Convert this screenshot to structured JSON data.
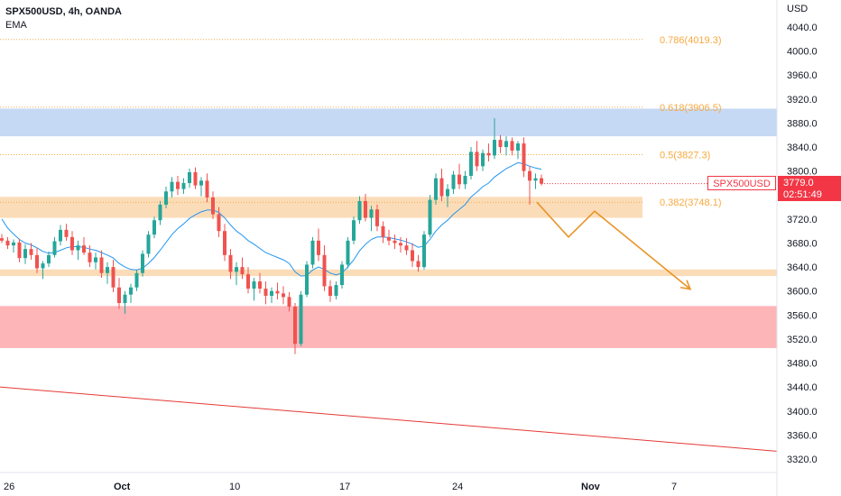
{
  "header": {
    "symbol_line": "SPX500USD, 4h, OANDA",
    "indicator": "EMA"
  },
  "axis": {
    "currency": "USD",
    "y_ticks": [
      "4040.0",
      "4000.0",
      "3960.0",
      "3920.0",
      "3880.0",
      "3840.0",
      "3800.0",
      "3760.0",
      "3720.0",
      "3680.0",
      "3640.0",
      "3600.0",
      "3560.0",
      "3520.0",
      "3480.0",
      "3440.0",
      "3400.0",
      "3360.0",
      "3320.0"
    ],
    "x_ticks": [
      "26",
      "Oct",
      "10",
      "17",
      "24",
      "Nov",
      "7"
    ]
  },
  "price_label": {
    "symbol": "SPX500USD",
    "price": "3779.0",
    "countdown": "02:51:49"
  },
  "colors": {
    "bull": "#26a69a",
    "bear": "#ef5350",
    "ema": "#2196f3",
    "fib": "#f7a940",
    "zone_blue": "#c5d9f5",
    "zone_orange": "#fbdcb8",
    "zone_red": "#fdb5b8",
    "trend": "#e53935",
    "projection": "#e8952a",
    "last_price": "#f23645"
  },
  "chart_data": {
    "type": "candlestick",
    "title": "SPX500USD, 4h, OANDA",
    "ylabel": "USD",
    "ylim": [
      3300,
      4070
    ],
    "x_tick_labels": [
      "26",
      "Oct",
      "10",
      "17",
      "24",
      "Nov",
      "7"
    ],
    "fib_levels": [
      {
        "label": "0.786(4019.3)",
        "value": 4019.3
      },
      {
        "label": "0.618(3906.5)",
        "value": 3906.5
      },
      {
        "label": "0.5(3827.3)",
        "value": 3827.3
      },
      {
        "label": "0.382(3748.1)",
        "value": 3748.1
      }
    ],
    "zones": [
      {
        "name": "resistance",
        "color": "blue",
        "from": 3858,
        "to": 3904
      },
      {
        "name": "support-1",
        "color": "orange",
        "from": 3722,
        "to": 3757
      },
      {
        "name": "support-2",
        "color": "orange",
        "from": 3625,
        "to": 3636
      },
      {
        "name": "demand",
        "color": "red",
        "from": 3505,
        "to": 3575
      }
    ],
    "trendline": {
      "from_value": 3440,
      "to_value": 3333
    },
    "projection_path": [
      3748,
      3690,
      3733,
      3603
    ],
    "last_price": 3779.0,
    "ohlc_approx": [
      [
        3688,
        3695,
        3680,
        3684
      ],
      [
        3684,
        3690,
        3670,
        3676
      ],
      [
        3676,
        3686,
        3664,
        3681
      ],
      [
        3681,
        3687,
        3648,
        3655
      ],
      [
        3655,
        3678,
        3645,
        3670
      ],
      [
        3670,
        3680,
        3652,
        3660
      ],
      [
        3660,
        3672,
        3630,
        3638
      ],
      [
        3638,
        3650,
        3620,
        3646
      ],
      [
        3646,
        3666,
        3640,
        3660
      ],
      [
        3660,
        3690,
        3656,
        3683
      ],
      [
        3683,
        3710,
        3676,
        3702
      ],
      [
        3702,
        3712,
        3684,
        3690
      ],
      [
        3690,
        3700,
        3660,
        3668
      ],
      [
        3668,
        3684,
        3652,
        3676
      ],
      [
        3676,
        3690,
        3660,
        3664
      ],
      [
        3664,
        3676,
        3640,
        3648
      ],
      [
        3648,
        3664,
        3636,
        3656
      ],
      [
        3656,
        3668,
        3622,
        3630
      ],
      [
        3630,
        3648,
        3612,
        3640
      ],
      [
        3640,
        3652,
        3598,
        3606
      ],
      [
        3606,
        3622,
        3570,
        3580
      ],
      [
        3580,
        3600,
        3562,
        3594
      ],
      [
        3594,
        3612,
        3580,
        3606
      ],
      [
        3606,
        3636,
        3600,
        3630
      ],
      [
        3630,
        3668,
        3624,
        3662
      ],
      [
        3662,
        3700,
        3656,
        3694
      ],
      [
        3694,
        3724,
        3688,
        3718
      ],
      [
        3718,
        3750,
        3710,
        3744
      ],
      [
        3744,
        3774,
        3738,
        3766
      ],
      [
        3766,
        3790,
        3756,
        3782
      ],
      [
        3782,
        3792,
        3760,
        3770
      ],
      [
        3770,
        3788,
        3762,
        3780
      ],
      [
        3780,
        3804,
        3772,
        3798
      ],
      [
        3798,
        3806,
        3770,
        3776
      ],
      [
        3776,
        3790,
        3758,
        3784
      ],
      [
        3784,
        3796,
        3748,
        3756
      ],
      [
        3756,
        3766,
        3720,
        3728
      ],
      [
        3728,
        3740,
        3690,
        3700
      ],
      [
        3700,
        3712,
        3650,
        3660
      ],
      [
        3660,
        3670,
        3620,
        3632
      ],
      [
        3632,
        3648,
        3610,
        3640
      ],
      [
        3640,
        3656,
        3620,
        3628
      ],
      [
        3628,
        3640,
        3596,
        3604
      ],
      [
        3604,
        3622,
        3584,
        3616
      ],
      [
        3616,
        3630,
        3596,
        3604
      ],
      [
        3604,
        3616,
        3578,
        3592
      ],
      [
        3592,
        3606,
        3580,
        3600
      ],
      [
        3600,
        3614,
        3586,
        3596
      ],
      [
        3596,
        3608,
        3578,
        3590
      ],
      [
        3590,
        3598,
        3566,
        3574
      ],
      [
        3574,
        3580,
        3495,
        3512
      ],
      [
        3512,
        3600,
        3508,
        3594
      ],
      [
        3594,
        3650,
        3590,
        3644
      ],
      [
        3644,
        3690,
        3638,
        3684
      ],
      [
        3684,
        3704,
        3650,
        3660
      ],
      [
        3660,
        3676,
        3600,
        3608
      ],
      [
        3608,
        3618,
        3582,
        3592
      ],
      [
        3592,
        3616,
        3586,
        3610
      ],
      [
        3610,
        3650,
        3604,
        3644
      ],
      [
        3644,
        3690,
        3638,
        3684
      ],
      [
        3684,
        3724,
        3678,
        3718
      ],
      [
        3718,
        3758,
        3712,
        3750
      ],
      [
        3750,
        3762,
        3716,
        3722
      ],
      [
        3722,
        3742,
        3700,
        3736
      ],
      [
        3736,
        3744,
        3700,
        3708
      ],
      [
        3708,
        3716,
        3680,
        3690
      ],
      [
        3690,
        3702,
        3676,
        3684
      ],
      [
        3684,
        3694,
        3670,
        3680
      ],
      [
        3680,
        3690,
        3664,
        3676
      ],
      [
        3676,
        3688,
        3660,
        3668
      ],
      [
        3668,
        3680,
        3640,
        3650
      ],
      [
        3650,
        3660,
        3632,
        3640
      ],
      [
        3640,
        3700,
        3636,
        3694
      ],
      [
        3694,
        3760,
        3690,
        3752
      ],
      [
        3752,
        3796,
        3744,
        3788
      ],
      [
        3788,
        3804,
        3750,
        3758
      ],
      [
        3758,
        3778,
        3740,
        3770
      ],
      [
        3770,
        3800,
        3762,
        3794
      ],
      [
        3794,
        3812,
        3770,
        3778
      ],
      [
        3778,
        3800,
        3770,
        3792
      ],
      [
        3792,
        3840,
        3786,
        3832
      ],
      [
        3832,
        3850,
        3800,
        3808
      ],
      [
        3808,
        3836,
        3800,
        3830
      ],
      [
        3830,
        3846,
        3816,
        3826
      ],
      [
        3826,
        3888,
        3820,
        3852
      ],
      [
        3852,
        3860,
        3830,
        3840
      ],
      [
        3840,
        3858,
        3826,
        3850
      ],
      [
        3850,
        3856,
        3826,
        3834
      ],
      [
        3834,
        3850,
        3820,
        3846
      ],
      [
        3846,
        3856,
        3790,
        3800
      ],
      [
        3800,
        3808,
        3744,
        3784
      ],
      [
        3784,
        3796,
        3770,
        3788
      ],
      [
        3788,
        3794,
        3776,
        3779
      ]
    ],
    "ema_approx": [
      3720,
      3705,
      3695,
      3686,
      3680,
      3677,
      3672,
      3666,
      3663,
      3664,
      3668,
      3672,
      3674,
      3674,
      3673,
      3670,
      3668,
      3664,
      3660,
      3655,
      3646,
      3640,
      3636,
      3635,
      3638,
      3646,
      3656,
      3668,
      3681,
      3694,
      3704,
      3712,
      3721,
      3727,
      3732,
      3735,
      3735,
      3731,
      3722,
      3710,
      3700,
      3693,
      3684,
      3678,
      3671,
      3664,
      3660,
      3656,
      3652,
      3646,
      3632,
      3625,
      3626,
      3635,
      3640,
      3636,
      3630,
      3627,
      3630,
      3640,
      3652,
      3667,
      3678,
      3686,
      3690,
      3690,
      3689,
      3687,
      3685,
      3682,
      3678,
      3673,
      3675,
      3686,
      3700,
      3710,
      3718,
      3728,
      3736,
      3744,
      3757,
      3765,
      3774,
      3780,
      3790,
      3797,
      3804,
      3809,
      3814,
      3812,
      3808,
      3805,
      3803
    ]
  }
}
